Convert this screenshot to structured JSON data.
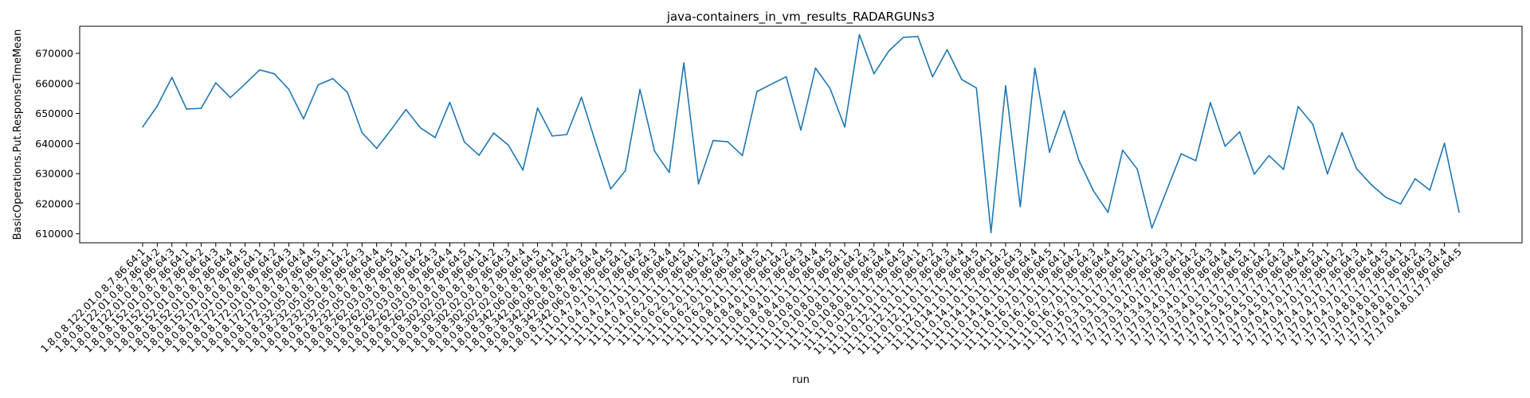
{
  "chart_data": {
    "type": "line",
    "title": "java-containers_in_vm_results_RADARGUNs3",
    "xlabel": "run",
    "ylabel": "BasicOperations.Put.ResponseTimeMean",
    "ylim": [
      607000,
      679000
    ],
    "yticks": [
      610000,
      620000,
      630000,
      640000,
      650000,
      660000,
      670000
    ],
    "ytick_labels": [
      "610000",
      "620000",
      "630000",
      "640000",
      "650000",
      "660000",
      "670000"
    ],
    "grid": false,
    "x": [
      "1.8.0.8.122.01.0.8.7.86.64:1",
      "1.8.0.8.122.01.0.8.7.86.64:2",
      "1.8.0.8.122.01.0.8.7.86.64:3",
      "1.8.0.8.152.01.0.8.7.86.64:1",
      "1.8.0.8.152.01.0.8.7.86.64:2",
      "1.8.0.8.152.01.0.8.7.86.64:3",
      "1.8.0.8.152.01.0.8.7.86.64:4",
      "1.8.0.8.152.01.0.8.7.86.64:5",
      "1.8.0.8.172.01.0.8.7.86.64:1",
      "1.8.0.8.172.01.0.8.7.86.64:2",
      "1.8.0.8.172.01.0.8.7.86.64:3",
      "1.8.0.8.172.01.0.8.7.86.64:4",
      "1.8.0.8.172.01.0.8.7.86.64:5",
      "1.8.0.8.232.05.0.8.7.86.64:1",
      "1.8.0.8.232.05.0.8.7.86.64:2",
      "1.8.0.8.232.05.0.8.7.86.64:3",
      "1.8.0.8.232.05.0.8.7.86.64:4",
      "1.8.0.8.232.05.0.8.7.86.64:5",
      "1.8.0.8.262.03.0.8.7.86.64:1",
      "1.8.0.8.262.03.0.8.7.86.64:2",
      "1.8.0.8.262.03.0.8.7.86.64:3",
      "1.8.0.8.262.03.0.8.7.86.64:4",
      "1.8.0.8.262.03.0.8.7.86.64:5",
      "1.8.0.8.302.02.0.8.7.86.64:1",
      "1.8.0.8.302.02.0.8.7.86.64:2",
      "1.8.0.8.302.02.0.8.7.86.64:3",
      "1.8.0.8.302.02.0.8.7.86.64:4",
      "1.8.0.8.302.02.0.8.7.86.64:5",
      "1.8.0.8.342.06.0.8.7.86.64:1",
      "1.8.0.8.342.06.0.8.7.86.64:2",
      "1.8.0.8.342.06.0.8.7.86.64:3",
      "1.8.0.8.342.06.0.8.7.86.64:4",
      "1.8.0.8.342.06.0.8.7.86.64:5",
      "11.11.0.4.7.0.11.7.86.64:1",
      "11.11.0.4.7.0.11.7.86.64:2",
      "11.11.0.4.7.0.11.7.86.64:3",
      "11.11.0.4.7.0.11.7.86.64:4",
      "11.11.0.4.7.0.11.7.86.64:5",
      "11.11.0.6.2.0.11.7.86.64:1",
      "11.11.0.6.2.0.11.7.86.64:2",
      "11.11.0.6.2.0.11.7.86.64:3",
      "11.11.0.6.2.0.11.7.86.64:4",
      "11.11.0.6.2.0.11.7.86.64:5",
      "11.11.0.8.4.0.11.7.86.64:1",
      "11.11.0.8.4.0.11.7.86.64:2",
      "11.11.0.8.4.0.11.7.86.64:3",
      "11.11.0.8.4.0.11.7.86.64:4",
      "11.11.0.8.4.0.11.7.86.64:5",
      "11.11.0.10.8.0.11.7.86.64:1",
      "11.11.0.10.8.0.11.7.86.64:2",
      "11.11.0.10.8.0.11.7.86.64:3",
      "11.11.0.10.8.0.11.7.86.64:4",
      "11.11.0.10.8.0.11.7.86.64:5",
      "11.11.0.12.11.0.11.7.86.64:1",
      "11.11.0.12.11.0.11.7.86.64:2",
      "11.11.0.12.11.0.11.7.86.64:3",
      "11.11.0.12.11.0.11.7.86.64:4",
      "11.11.0.12.11.0.11.7.86.64:5",
      "11.11.0.14.1.0.11.7.86.64:1",
      "11.11.0.14.1.0.11.7.86.64:2",
      "11.11.0.14.1.0.11.7.86.64:3",
      "11.11.0.14.1.0.11.7.86.64:4",
      "11.11.0.14.1.0.11.7.86.64:5",
      "11.11.0.16.7.0.11.7.86.64:1",
      "11.11.0.16.7.0.11.7.86.64:2",
      "11.11.0.16.7.0.11.7.86.64:3",
      "11.11.0.16.7.0.11.7.86.64:4",
      "11.11.0.16.7.0.11.7.86.64:5",
      "17.17.0.3.1.0.17.7.86.64:1",
      "17.17.0.3.1.0.17.7.86.64:2",
      "17.17.0.3.1.0.17.7.86.64:3",
      "17.17.0.3.4.0.17.7.86.64:1",
      "17.17.0.3.4.0.17.7.86.64:2",
      "17.17.0.3.4.0.17.7.86.64:3",
      "17.17.0.3.4.0.17.7.86.64:4",
      "17.17.0.3.4.0.17.7.86.64:5",
      "17.17.0.4.5.0.17.7.86.64:1",
      "17.17.0.4.5.0.17.7.86.64:2",
      "17.17.0.4.5.0.17.7.86.64:3",
      "17.17.0.4.5.0.17.7.86.64:4",
      "17.17.0.4.5.0.17.7.86.64:5",
      "17.17.0.4.7.0.17.7.86.64:1",
      "17.17.0.4.7.0.17.7.86.64:2",
      "17.17.0.4.7.0.17.7.86.64:3",
      "17.17.0.4.7.0.17.7.86.64:4",
      "17.17.0.4.7.0.17.7.86.64:5",
      "17.17.0.4.8.0.17.7.86.64:1",
      "17.17.0.4.8.0.17.7.86.64:2",
      "17.17.0.4.8.0.17.7.86.64:3",
      "17.17.0.4.8.0.17.7.86.64:4",
      "17.17.0.4.8.0.17.7.86.64:5"
    ],
    "series": [
      {
        "color": "#1f77b4",
        "values": [
          645500,
          652500,
          662000,
          651500,
          651700,
          660200,
          655300,
          659800,
          664500,
          663200,
          658000,
          648200,
          659500,
          661600,
          657000,
          643600,
          638400,
          644700,
          651300,
          645200,
          642000,
          653700,
          640500,
          636100,
          643500,
          639500,
          631200,
          651800,
          642500,
          643000,
          655400,
          639800,
          624900,
          631000,
          658000,
          637500,
          630400,
          666800,
          626600,
          641000,
          640600,
          636000,
          657300,
          659800,
          662200,
          644500,
          665100,
          658300,
          645500,
          676200,
          663200,
          670700,
          675300,
          675600,
          662200,
          671200,
          661300,
          658500,
          610400,
          659200,
          619000,
          665100,
          637100,
          650900,
          634500,
          624300,
          617100,
          637800,
          631500,
          611900,
          624300,
          636600,
          634300,
          653600,
          639100,
          643900,
          629800,
          636000,
          631400,
          652300,
          646400,
          629900,
          643600,
          631600,
          626300,
          622100,
          619900,
          628300,
          624500,
          640100,
          617200
        ]
      }
    ]
  }
}
